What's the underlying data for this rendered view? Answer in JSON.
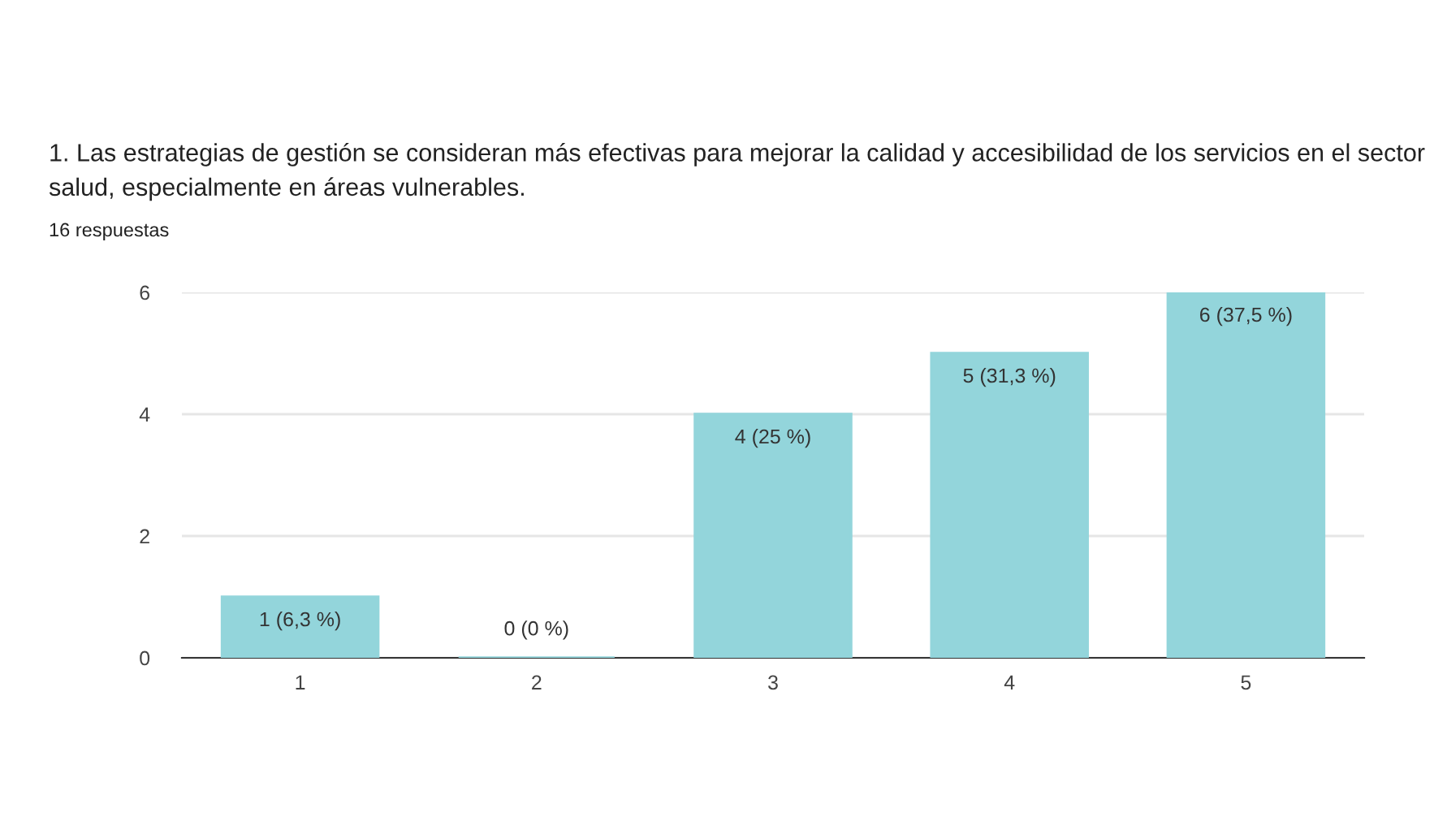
{
  "chart_data": {
    "type": "bar",
    "title": "1. Las estrategias de gestión se consideran más efectivas para mejorar la calidad y accesibilidad de los servicios en el sector salud, especialmente en áreas vulnerables.",
    "subtitle": "16 respuestas",
    "categories": [
      "1",
      "2",
      "3",
      "4",
      "5"
    ],
    "values": [
      1,
      0,
      4,
      5,
      6
    ],
    "value_labels": [
      "1 (6,3 %)",
      "0 (0 %)",
      "4 (25 %)",
      "5 (31,3 %)",
      "6 (37,5 %)"
    ],
    "color": "#93d5db",
    "ylim": [
      0,
      6
    ],
    "yticks": [
      0,
      2,
      4,
      6
    ],
    "grid": "y"
  }
}
